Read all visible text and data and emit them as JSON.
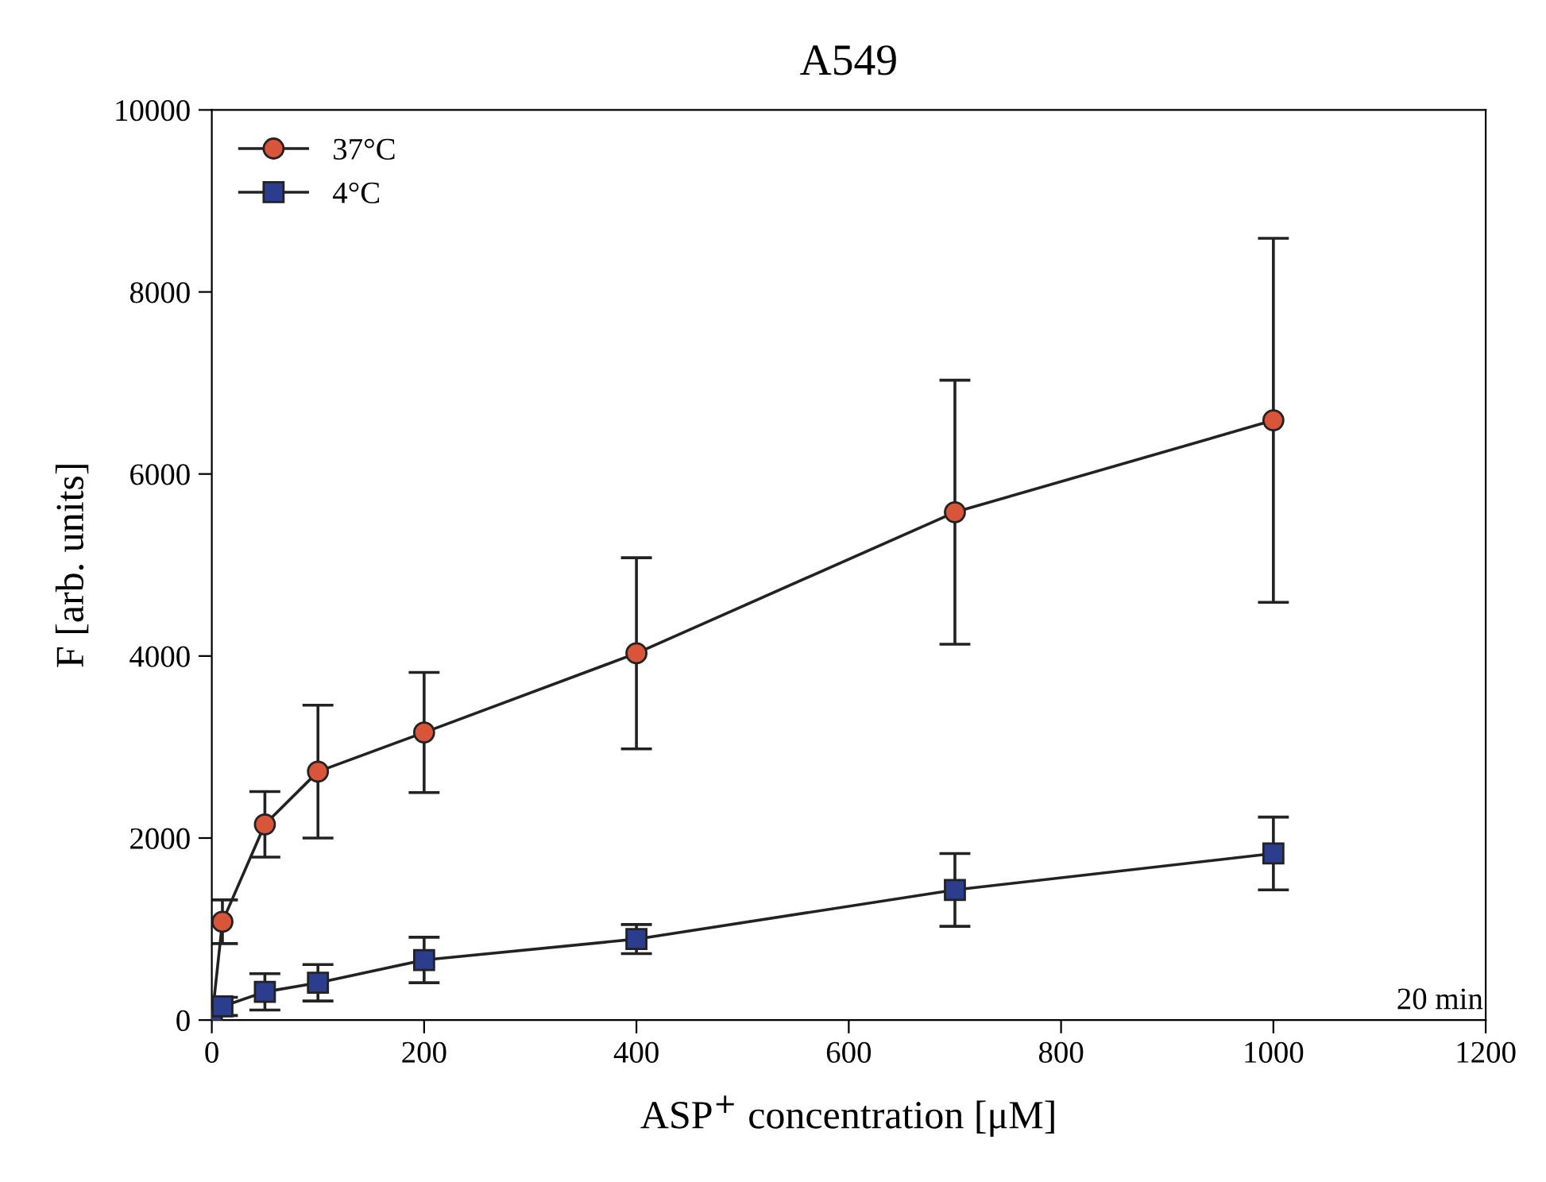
{
  "chart_data": {
    "type": "line",
    "title": "A549",
    "xlabel": "ASP$^{+}$ concentration [μM]",
    "ylabel": "F [arb. units]",
    "x": [
      0,
      10,
      50,
      100,
      200,
      400,
      700,
      1000
    ],
    "series": [
      {
        "name": "37°C",
        "color": "#d9553a",
        "marker": "circle",
        "values": [
          0,
          1080,
          2150,
          2730,
          3160,
          4030,
          5580,
          6590
        ],
        "errors": [
          null,
          240,
          360,
          730,
          660,
          1050,
          1450,
          2000
        ]
      },
      {
        "name": "4°C",
        "color": "#2b3d8c",
        "marker": "square",
        "values": [
          0,
          150,
          310,
          410,
          660,
          890,
          1430,
          1830
        ],
        "errors": [
          null,
          100,
          200,
          200,
          250,
          160,
          400,
          400
        ]
      }
    ],
    "xlim": [
      0,
      1200
    ],
    "xticks": [
      0,
      200,
      400,
      600,
      800,
      1000,
      1200
    ],
    "ylim": [
      0,
      10000
    ],
    "yticks": [
      0,
      2000,
      4000,
      6000,
      8000,
      10000
    ],
    "grid": false,
    "legend": "top left",
    "line_style": "solid",
    "annotations": [
      "20 min"
    ]
  }
}
